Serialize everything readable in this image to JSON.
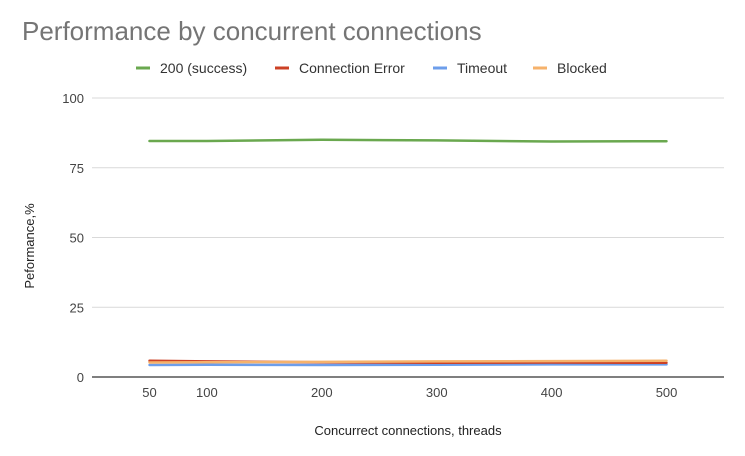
{
  "chart_data": {
    "type": "line",
    "title": "Performance by concurrent connections",
    "xlabel": "Concurrect connections, threads",
    "ylabel": "Peformance,%",
    "x": [
      50,
      100,
      200,
      300,
      400,
      500
    ],
    "xlim": [
      0,
      550
    ],
    "ylim": [
      0,
      100
    ],
    "yticks": [
      0,
      25,
      50,
      75,
      100
    ],
    "grid": true,
    "legend_position": "top",
    "series": [
      {
        "name": "200 (success)",
        "color": "#6aa84f",
        "values": [
          84.6,
          84.6,
          85.0,
          84.8,
          84.4,
          84.5
        ]
      },
      {
        "name": "Connection Error",
        "color": "#cc4125",
        "values": [
          5.8,
          5.6,
          5.3,
          5.1,
          5.2,
          5.1
        ]
      },
      {
        "name": "Timeout",
        "color": "#6d9eeb",
        "values": [
          4.3,
          4.4,
          4.3,
          4.4,
          4.5,
          4.5
        ]
      },
      {
        "name": "Blocked",
        "color": "#f6b26b",
        "values": [
          5.2,
          5.3,
          5.4,
          5.6,
          5.7,
          5.8
        ]
      }
    ]
  }
}
